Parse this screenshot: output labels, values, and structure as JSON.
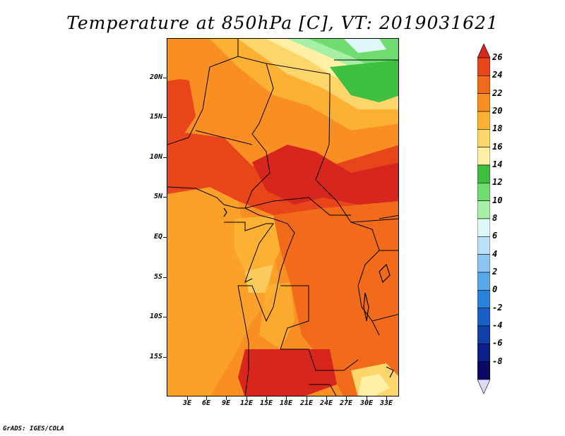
{
  "title": "Temperature at 850hPa [C], VT: 2019031621",
  "credit": "GrADS: IGES/COLA",
  "y_axis_labels": [
    "20N",
    "15N",
    "10N",
    "5N",
    "EQ",
    "5S",
    "10S",
    "15S"
  ],
  "x_axis_labels": [
    "3E",
    "6E",
    "9E",
    "12E",
    "15E",
    "18E",
    "21E",
    "24E",
    "27E",
    "30E",
    "33E"
  ],
  "colorbar": {
    "labels": [
      "26",
      "24",
      "22",
      "20",
      "18",
      "16",
      "14",
      "12",
      "10",
      "8",
      "6",
      "4",
      "2",
      "0",
      "-2",
      "-4",
      "-6",
      "-8"
    ],
    "colors": [
      "#d7261e",
      "#e8451a",
      "#f26b1b",
      "#f98e22",
      "#fdb132",
      "#fdd66b",
      "#fff0a6",
      "#3fbf3f",
      "#6fdc6f",
      "#a6f0a6",
      "#dff7f7",
      "#b9e0f5",
      "#8cc6ef",
      "#5aa8e8",
      "#2a82da",
      "#1a5ec8",
      "#0f3fa8",
      "#0c1f88",
      "#0a0a62",
      "#ddd8f5"
    ]
  }
}
